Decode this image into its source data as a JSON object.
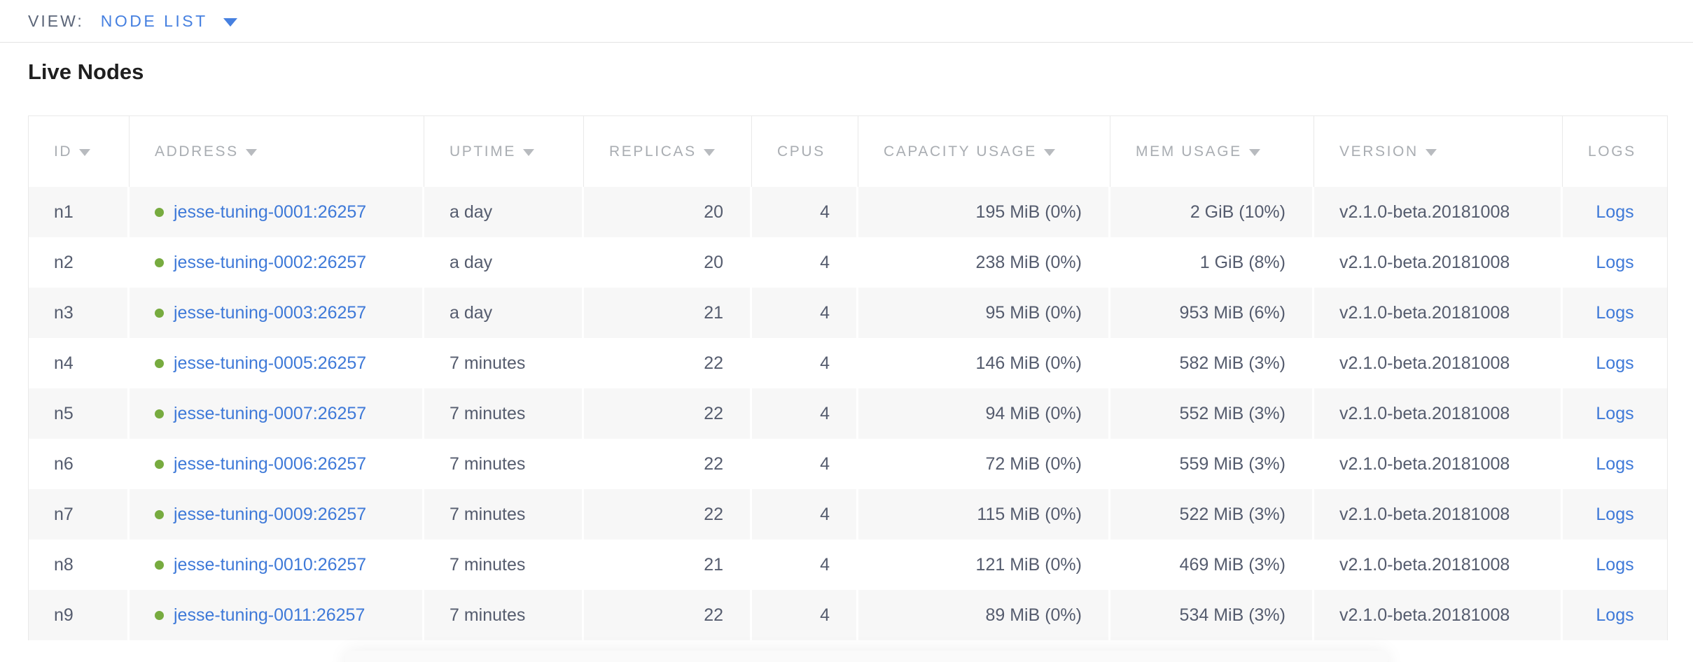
{
  "view_bar": {
    "label": "VIEW:",
    "selected": "NODE LIST"
  },
  "page": {
    "title": "Live Nodes"
  },
  "table": {
    "columns": [
      {
        "key": "id",
        "label": "ID",
        "sortable": true,
        "align": "left"
      },
      {
        "key": "address",
        "label": "ADDRESS",
        "sortable": true,
        "align": "left"
      },
      {
        "key": "uptime",
        "label": "UPTIME",
        "sortable": true,
        "align": "left"
      },
      {
        "key": "replicas",
        "label": "REPLICAS",
        "sortable": true,
        "align": "right"
      },
      {
        "key": "cpus",
        "label": "CPUS",
        "sortable": false,
        "align": "right"
      },
      {
        "key": "capacity",
        "label": "CAPACITY USAGE",
        "sortable": true,
        "align": "right"
      },
      {
        "key": "mem",
        "label": "MEM USAGE",
        "sortable": true,
        "align": "right"
      },
      {
        "key": "version",
        "label": "VERSION",
        "sortable": true,
        "align": "left"
      },
      {
        "key": "logs",
        "label": "LOGS",
        "sortable": false,
        "align": "center"
      }
    ],
    "rows": [
      {
        "id": "n1",
        "status": "live",
        "address": "jesse-tuning-0001:26257",
        "uptime": "a day",
        "replicas": "20",
        "cpus": "4",
        "capacity": "195 MiB (0%)",
        "mem": "2 GiB (10%)",
        "version": "v2.1.0-beta.20181008",
        "logs": "Logs"
      },
      {
        "id": "n2",
        "status": "live",
        "address": "jesse-tuning-0002:26257",
        "uptime": "a day",
        "replicas": "20",
        "cpus": "4",
        "capacity": "238 MiB (0%)",
        "mem": "1 GiB (8%)",
        "version": "v2.1.0-beta.20181008",
        "logs": "Logs"
      },
      {
        "id": "n3",
        "status": "live",
        "address": "jesse-tuning-0003:26257",
        "uptime": "a day",
        "replicas": "21",
        "cpus": "4",
        "capacity": "95 MiB (0%)",
        "mem": "953 MiB (6%)",
        "version": "v2.1.0-beta.20181008",
        "logs": "Logs"
      },
      {
        "id": "n4",
        "status": "live",
        "address": "jesse-tuning-0005:26257",
        "uptime": "7 minutes",
        "replicas": "22",
        "cpus": "4",
        "capacity": "146 MiB (0%)",
        "mem": "582 MiB (3%)",
        "version": "v2.1.0-beta.20181008",
        "logs": "Logs"
      },
      {
        "id": "n5",
        "status": "live",
        "address": "jesse-tuning-0007:26257",
        "uptime": "7 minutes",
        "replicas": "22",
        "cpus": "4",
        "capacity": "94 MiB (0%)",
        "mem": "552 MiB (3%)",
        "version": "v2.1.0-beta.20181008",
        "logs": "Logs"
      },
      {
        "id": "n6",
        "status": "live",
        "address": "jesse-tuning-0006:26257",
        "uptime": "7 minutes",
        "replicas": "22",
        "cpus": "4",
        "capacity": "72 MiB (0%)",
        "mem": "559 MiB (3%)",
        "version": "v2.1.0-beta.20181008",
        "logs": "Logs"
      },
      {
        "id": "n7",
        "status": "live",
        "address": "jesse-tuning-0009:26257",
        "uptime": "7 minutes",
        "replicas": "22",
        "cpus": "4",
        "capacity": "115 MiB (0%)",
        "mem": "522 MiB (3%)",
        "version": "v2.1.0-beta.20181008",
        "logs": "Logs"
      },
      {
        "id": "n8",
        "status": "live",
        "address": "jesse-tuning-0010:26257",
        "uptime": "7 minutes",
        "replicas": "21",
        "cpus": "4",
        "capacity": "121 MiB (0%)",
        "mem": "469 MiB (3%)",
        "version": "v2.1.0-beta.20181008",
        "logs": "Logs"
      },
      {
        "id": "n9",
        "status": "live",
        "address": "jesse-tuning-0011:26257",
        "uptime": "7 minutes",
        "replicas": "22",
        "cpus": "4",
        "capacity": "89 MiB (0%)",
        "mem": "534 MiB (3%)",
        "version": "v2.1.0-beta.20181008",
        "logs": "Logs"
      }
    ]
  },
  "colors": {
    "accent_blue": "#4680e0",
    "link_blue": "#3e79d8",
    "live_green": "#77ab3f",
    "body_text": "#555c6e",
    "header_text": "#a9adb2",
    "row_stripe": "#f7f7f7",
    "border": "#e9e9e9"
  }
}
